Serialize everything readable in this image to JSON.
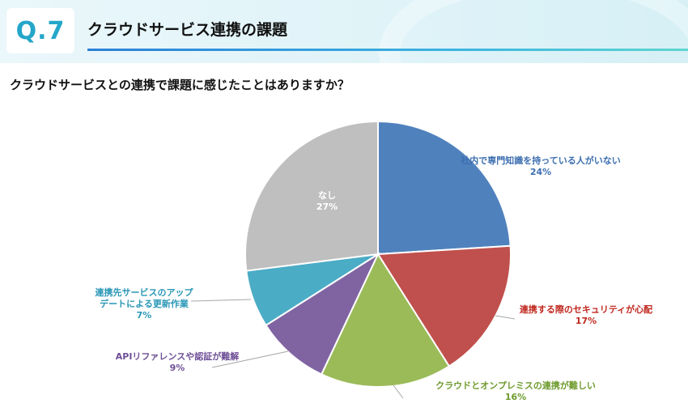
{
  "header": {
    "badge": "Q.7",
    "title": "クラウドサービス連携の課題"
  },
  "question": "クラウドサービスとの連携で課題に感じたことはありますか？",
  "colors": {
    "badge_text": "#24a6c9",
    "accent_line": "#2c7fd6"
  },
  "chart_data": {
    "type": "pie",
    "start": "12 o'clock, clockwise",
    "slices": [
      {
        "name": "社内で専門知識を持っている人がいない",
        "value": 24,
        "label": "24%",
        "color": "#4f81bd",
        "label_color": "#3d6fb0"
      },
      {
        "name": "連携する際のセキュリティが心配",
        "value": 17,
        "label": "17%",
        "color": "#c0504d",
        "label_color": "#c0281f"
      },
      {
        "name": "クラウドとオンプレミスの連携が難しい",
        "value": 16,
        "label": "16%",
        "color": "#9bbb59",
        "label_color": "#6e9a2c"
      },
      {
        "name": "APIリファレンスや認証が難解",
        "value": 9,
        "label": "9%",
        "color": "#8064a2",
        "label_color": "#6e4f96"
      },
      {
        "name": "連携先サービスのアップデートによる更新作業",
        "value": 7,
        "label": "7%",
        "color": "#4bacc6",
        "label_color": "#2a97b6"
      },
      {
        "name": "なし",
        "value": 27,
        "label": "27%",
        "color": "#bfbfbf",
        "label_color": "#ffffff"
      }
    ]
  }
}
